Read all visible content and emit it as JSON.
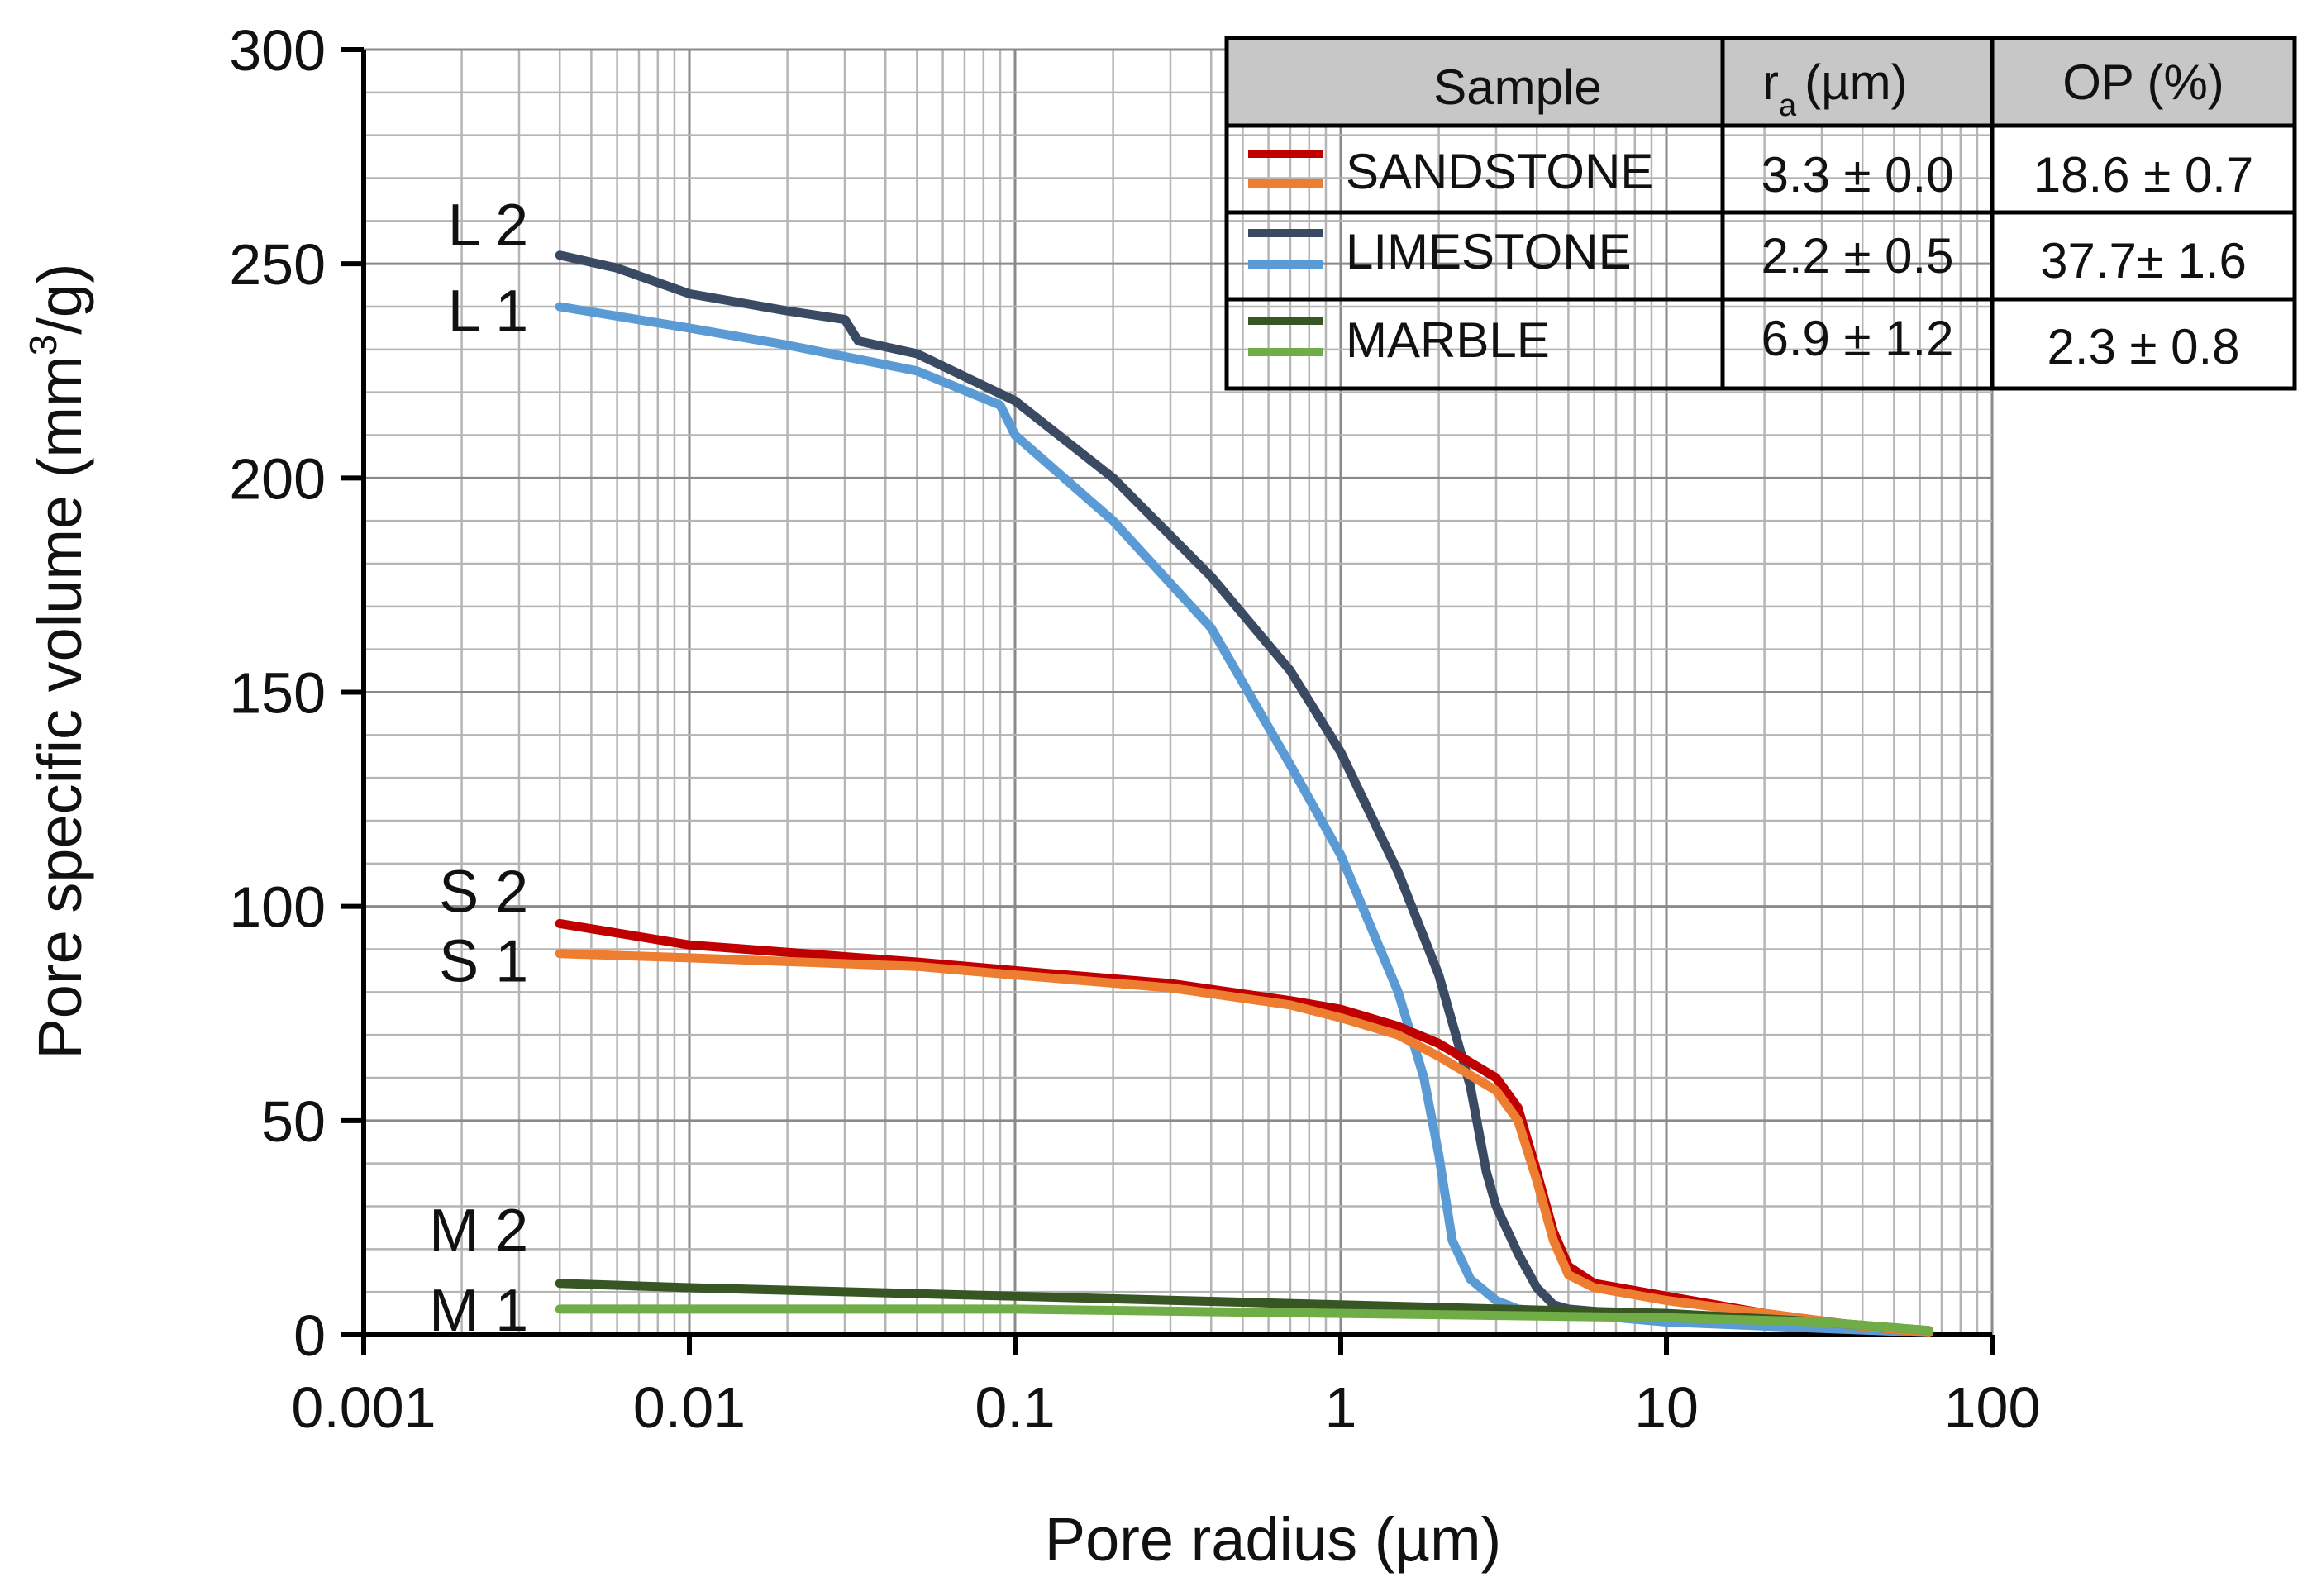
{
  "chart_data": {
    "type": "line",
    "xscale": "log",
    "xlabel": "Pore radius (µm)",
    "ylabel": "Pore specific volume (mm³/g)",
    "xlim": [
      0.001,
      100
    ],
    "ylim": [
      0,
      300
    ],
    "x_ticks": [
      0.001,
      0.01,
      0.1,
      1,
      10,
      100
    ],
    "x_tick_labels": [
      "0.001",
      "0.01",
      "0.1",
      "1",
      "10",
      "100"
    ],
    "y_ticks": [
      0,
      50,
      100,
      150,
      200,
      250,
      300
    ],
    "y_tick_labels": [
      "0",
      "50",
      "100",
      "150",
      "200",
      "250",
      "300"
    ],
    "grid": true,
    "series": [
      {
        "name": "L 2",
        "label": "L 2",
        "color": "#3b4a63",
        "points": [
          [
            0.004,
            252
          ],
          [
            0.006,
            249
          ],
          [
            0.01,
            243
          ],
          [
            0.02,
            239
          ],
          [
            0.03,
            237
          ],
          [
            0.033,
            232
          ],
          [
            0.05,
            229
          ],
          [
            0.1,
            218
          ],
          [
            0.2,
            200
          ],
          [
            0.4,
            177
          ],
          [
            0.7,
            155
          ],
          [
            1,
            136
          ],
          [
            1.5,
            108
          ],
          [
            2,
            84
          ],
          [
            2.5,
            58
          ],
          [
            2.8,
            38
          ],
          [
            3,
            30
          ],
          [
            3.5,
            19
          ],
          [
            4,
            11
          ],
          [
            4.5,
            7
          ],
          [
            5,
            6
          ],
          [
            10,
            4
          ],
          [
            30,
            2
          ],
          [
            64,
            0.5
          ]
        ]
      },
      {
        "name": "L 1",
        "label": "L 1",
        "color": "#5b9bd5",
        "points": [
          [
            0.004,
            240
          ],
          [
            0.01,
            235
          ],
          [
            0.02,
            231
          ],
          [
            0.05,
            225
          ],
          [
            0.09,
            217
          ],
          [
            0.1,
            210
          ],
          [
            0.2,
            190
          ],
          [
            0.4,
            165
          ],
          [
            0.7,
            133
          ],
          [
            1,
            112
          ],
          [
            1.5,
            80
          ],
          [
            1.8,
            60
          ],
          [
            2,
            42
          ],
          [
            2.2,
            22
          ],
          [
            2.5,
            13
          ],
          [
            3,
            8
          ],
          [
            3.5,
            6
          ],
          [
            5,
            5
          ],
          [
            10,
            3
          ],
          [
            30,
            1.5
          ],
          [
            64,
            0.5
          ]
        ]
      },
      {
        "name": "S 2",
        "label": "S 2",
        "color": "#c00000",
        "points": [
          [
            0.004,
            96
          ],
          [
            0.01,
            91
          ],
          [
            0.05,
            87
          ],
          [
            0.1,
            85
          ],
          [
            0.3,
            82
          ],
          [
            0.7,
            78
          ],
          [
            1,
            76
          ],
          [
            1.5,
            72
          ],
          [
            2,
            68
          ],
          [
            3,
            60
          ],
          [
            3.5,
            53
          ],
          [
            4,
            38
          ],
          [
            4.5,
            24
          ],
          [
            5,
            16
          ],
          [
            6,
            12
          ],
          [
            10,
            9
          ],
          [
            20,
            5
          ],
          [
            40,
            2
          ],
          [
            64,
            0.5
          ]
        ]
      },
      {
        "name": "S 1",
        "label": "S 1",
        "color": "#ed7d31",
        "points": [
          [
            0.004,
            89
          ],
          [
            0.01,
            88
          ],
          [
            0.05,
            86
          ],
          [
            0.1,
            84
          ],
          [
            0.3,
            81
          ],
          [
            0.7,
            77
          ],
          [
            1,
            74
          ],
          [
            1.5,
            70
          ],
          [
            2,
            65
          ],
          [
            3,
            57
          ],
          [
            3.5,
            50
          ],
          [
            4,
            36
          ],
          [
            4.5,
            22
          ],
          [
            5,
            14
          ],
          [
            6,
            11
          ],
          [
            10,
            8
          ],
          [
            20,
            5
          ],
          [
            40,
            2
          ],
          [
            64,
            0.5
          ]
        ]
      },
      {
        "name": "M 2",
        "label": "M 2",
        "color": "#375623",
        "points": [
          [
            0.004,
            12
          ],
          [
            0.01,
            11
          ],
          [
            0.1,
            9
          ],
          [
            1,
            7
          ],
          [
            10,
            5
          ],
          [
            30,
            3
          ],
          [
            64,
            1
          ]
        ]
      },
      {
        "name": "M 1",
        "label": "M 1",
        "color": "#70ad47",
        "points": [
          [
            0.004,
            6
          ],
          [
            0.01,
            6
          ],
          [
            0.1,
            6
          ],
          [
            1,
            5
          ],
          [
            10,
            4
          ],
          [
            30,
            3
          ],
          [
            64,
            1
          ]
        ]
      }
    ],
    "legend_table": {
      "headers": [
        "Sample",
        "r",
        "a",
        "(µm)",
        "OP (%)"
      ],
      "rows": [
        {
          "name": "SANDSTONE",
          "ra": "3.3 ± 0.0",
          "op": "18.6 ± 0.7",
          "colors": [
            "#c00000",
            "#ed7d31"
          ]
        },
        {
          "name": "LIMESTONE",
          "ra": "2.2 ± 0.5",
          "op": "37.7± 1.6",
          "colors": [
            "#3b4a63",
            "#5b9bd5"
          ]
        },
        {
          "name": "MARBLE",
          "ra": "6.9 ± 1.2",
          "op": "2.3 ± 0.8",
          "colors": [
            "#375623",
            "#70ad47"
          ]
        }
      ]
    }
  }
}
